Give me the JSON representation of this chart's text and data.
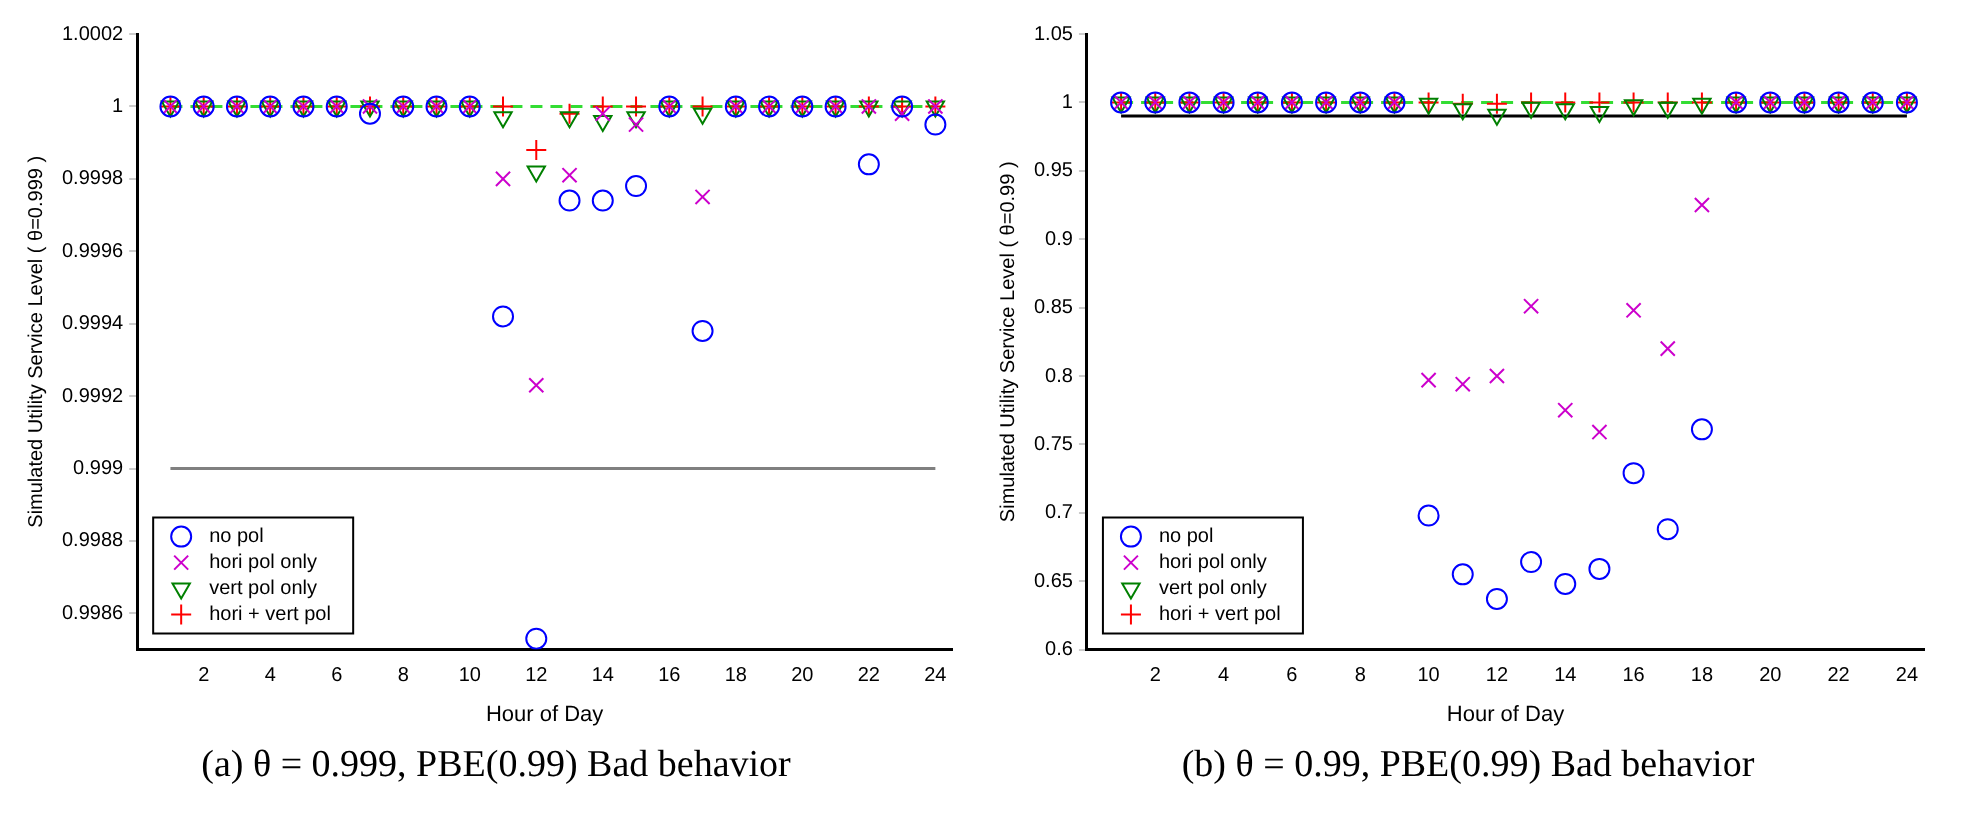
{
  "chart_data": [
    {
      "type": "scatter",
      "title": "(a) θ = 0.999, PBE(0.99) Bad behavior",
      "xlabel": "Hour of Day",
      "ylabel": "Simulated Utility Service Level ( θ=0.999 )",
      "x": [
        1,
        2,
        3,
        4,
        5,
        6,
        7,
        8,
        9,
        10,
        11,
        12,
        13,
        14,
        15,
        16,
        17,
        18,
        19,
        20,
        21,
        22,
        23,
        24
      ],
      "xlim": [
        0,
        24.5
      ],
      "xticks": [
        2,
        4,
        6,
        8,
        10,
        12,
        14,
        16,
        18,
        20,
        22,
        24
      ],
      "ylim": [
        0.9985,
        1.0002
      ],
      "yticks": [
        0.9986,
        0.9988,
        0.999,
        0.9992,
        0.9994,
        0.9996,
        0.9998,
        1,
        1.0002
      ],
      "grid": false,
      "legend": "bottom left",
      "ref_lines": [
        {
          "axis": "y",
          "value": 0.999,
          "color": "#808080",
          "line_style": "solid"
        },
        {
          "axis": "y",
          "value": 1,
          "color": "#33dd33",
          "line_style": "dashed"
        }
      ],
      "series": [
        {
          "name": "no pol",
          "color": "#0000ff",
          "marker": "circle",
          "values": [
            1,
            1,
            1,
            1,
            1,
            1,
            0.99998,
            1,
            1,
            1,
            0.99942,
            0.99853,
            0.99974,
            0.99974,
            0.99978,
            1,
            0.99938,
            1,
            1,
            1,
            1,
            0.99984,
            1,
            0.99995
          ]
        },
        {
          "name": "hori pol only",
          "color": "#cc00cc",
          "marker": "cross",
          "values": [
            1,
            1,
            1,
            1,
            1,
            1,
            1,
            1,
            1,
            1,
            0.9998,
            0.99923,
            0.99981,
            0.99998,
            0.99995,
            1,
            0.99975,
            1,
            1,
            1,
            1,
            1,
            0.99998,
            1
          ]
        },
        {
          "name": "vert pol only",
          "color": "#008000",
          "marker": "triangle",
          "values": [
            1,
            1,
            1,
            1,
            1,
            1,
            1,
            1,
            1,
            1,
            0.99997,
            0.99982,
            0.99997,
            0.99996,
            0.99997,
            1,
            0.99998,
            1,
            1,
            1,
            1,
            1,
            1,
            1
          ]
        },
        {
          "name": "hori + vert pol",
          "color": "#ff0000",
          "marker": "plus",
          "values": [
            1,
            1,
            1,
            1,
            1,
            1,
            1,
            1,
            1,
            1,
            1,
            0.99988,
            0.99998,
            1,
            1,
            1,
            1,
            1,
            1,
            1,
            1,
            1,
            1,
            1
          ]
        }
      ]
    },
    {
      "type": "scatter",
      "title": "(b) θ = 0.99, PBE(0.99) Bad behavior",
      "xlabel": "Hour of Day",
      "ylabel": "Simulated Utility Service Level ( θ=0.99 )",
      "x": [
        1,
        2,
        3,
        4,
        5,
        6,
        7,
        8,
        9,
        10,
        11,
        12,
        13,
        14,
        15,
        16,
        17,
        18,
        19,
        20,
        21,
        22,
        23,
        24
      ],
      "xlim": [
        0,
        24.5
      ],
      "xticks": [
        2,
        4,
        6,
        8,
        10,
        12,
        14,
        16,
        18,
        20,
        22,
        24
      ],
      "ylim": [
        0.6,
        1.05
      ],
      "yticks": [
        0.6,
        0.65,
        0.7,
        0.75,
        0.8,
        0.85,
        0.9,
        0.95,
        1,
        1.05
      ],
      "grid": false,
      "legend": "bottom left",
      "ref_lines": [
        {
          "axis": "y",
          "value": 0.99,
          "color": "#000000",
          "line_style": "solid"
        },
        {
          "axis": "y",
          "value": 1,
          "color": "#33dd33",
          "line_style": "dashed"
        }
      ],
      "series": [
        {
          "name": "no pol",
          "color": "#0000ff",
          "marker": "circle",
          "values": [
            1,
            1,
            1,
            1,
            1,
            1,
            1,
            1,
            1,
            0.698,
            0.655,
            0.637,
            0.664,
            0.648,
            0.659,
            0.729,
            0.688,
            0.761,
            1,
            1,
            1,
            1,
            1,
            1
          ]
        },
        {
          "name": "hori pol only",
          "color": "#cc00cc",
          "marker": "cross",
          "values": [
            1,
            1,
            1,
            1,
            1,
            1,
            1,
            1,
            1,
            0.797,
            0.794,
            0.8,
            0.851,
            0.775,
            0.759,
            0.848,
            0.82,
            0.925,
            1,
            1,
            1,
            1,
            1,
            1
          ]
        },
        {
          "name": "vert pol only",
          "color": "#008000",
          "marker": "triangle",
          "values": [
            1,
            1,
            1,
            1,
            1,
            1,
            1,
            1,
            1,
            0.999,
            0.995,
            0.991,
            0.996,
            0.995,
            0.993,
            0.998,
            0.996,
            0.999,
            1,
            1,
            1,
            1,
            1,
            1
          ]
        },
        {
          "name": "hori + vert pol",
          "color": "#ff0000",
          "marker": "plus",
          "values": [
            1,
            1,
            1,
            1,
            1,
            1,
            1,
            1,
            1,
            1,
            0.999,
            0.999,
            1,
            1,
            1,
            1,
            1,
            1,
            1,
            1,
            1,
            1,
            1,
            1
          ]
        }
      ]
    }
  ]
}
